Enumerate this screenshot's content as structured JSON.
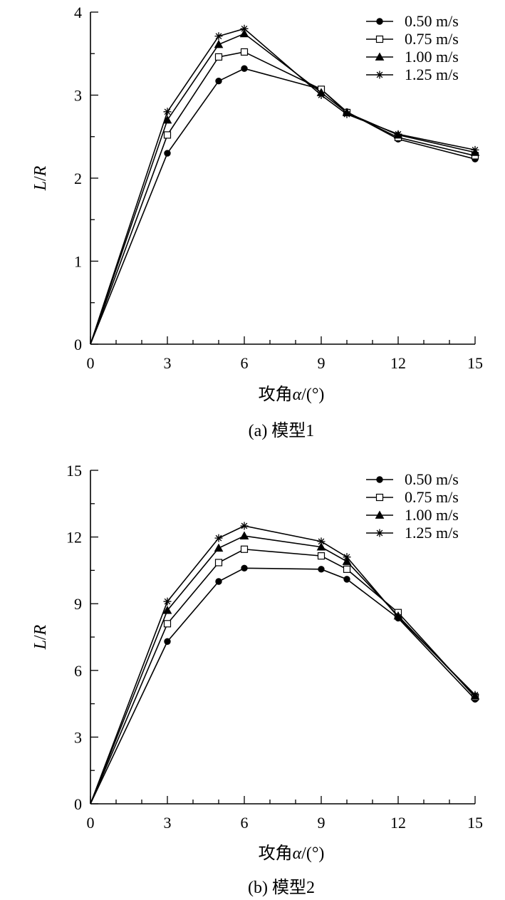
{
  "chart_data": [
    {
      "type": "line",
      "caption": "(a) 模型1",
      "xlabel_main": "攻角",
      "xlabel_symbol": "α",
      "xlabel_unit": "/(°)",
      "ylabel_main": "L",
      "ylabel_sep": "/",
      "ylabel_sub": "R",
      "x": [
        0,
        3,
        5,
        6,
        9,
        10,
        12,
        15
      ],
      "xlim": [
        0,
        15
      ],
      "ylim": [
        0,
        4
      ],
      "xticks": [
        0,
        3,
        6,
        9,
        12,
        15
      ],
      "yticks": [
        0,
        1,
        2,
        3,
        4
      ],
      "legend_position": "top-right",
      "grid": false,
      "series": [
        {
          "name": "0.50 m/s",
          "marker": "circle",
          "values": [
            0,
            2.3,
            3.17,
            3.32,
            3.07,
            2.8,
            2.47,
            2.23
          ]
        },
        {
          "name": "0.75 m/s",
          "marker": "square",
          "values": [
            0,
            2.52,
            3.46,
            3.52,
            3.07,
            2.79,
            2.49,
            2.27
          ]
        },
        {
          "name": "1.00 m/s",
          "marker": "triangle",
          "values": [
            0,
            2.7,
            3.61,
            3.74,
            3.03,
            2.79,
            2.52,
            2.31
          ]
        },
        {
          "name": "1.25 m/s",
          "marker": "star",
          "values": [
            0,
            2.8,
            3.71,
            3.8,
            3.0,
            2.77,
            2.53,
            2.34
          ]
        }
      ]
    },
    {
      "type": "line",
      "caption": "(b) 模型2",
      "xlabel_main": "攻角",
      "xlabel_symbol": "α",
      "xlabel_unit": "/(°)",
      "ylabel_main": "L",
      "ylabel_sep": "/",
      "ylabel_sub": "R",
      "x": [
        0,
        3,
        5,
        6,
        9,
        10,
        12,
        15
      ],
      "xlim": [
        0,
        15
      ],
      "ylim": [
        0,
        15
      ],
      "xticks": [
        0,
        3,
        6,
        9,
        12,
        15
      ],
      "yticks": [
        0,
        3,
        6,
        9,
        12,
        15
      ],
      "legend_position": "top-right",
      "grid": false,
      "series": [
        {
          "name": "0.50 m/s",
          "marker": "circle",
          "values": [
            0,
            7.3,
            10.0,
            10.6,
            10.55,
            10.1,
            8.35,
            4.7
          ]
        },
        {
          "name": "0.75 m/s",
          "marker": "square",
          "values": [
            0,
            8.1,
            10.85,
            11.45,
            11.15,
            10.55,
            8.6,
            4.8
          ]
        },
        {
          "name": "1.00 m/s",
          "marker": "triangle",
          "values": [
            0,
            8.7,
            11.5,
            12.05,
            11.55,
            10.9,
            8.45,
            4.85
          ]
        },
        {
          "name": "1.25 m/s",
          "marker": "star",
          "values": [
            0,
            9.1,
            11.95,
            12.5,
            11.8,
            11.1,
            8.4,
            4.9
          ]
        }
      ]
    }
  ]
}
